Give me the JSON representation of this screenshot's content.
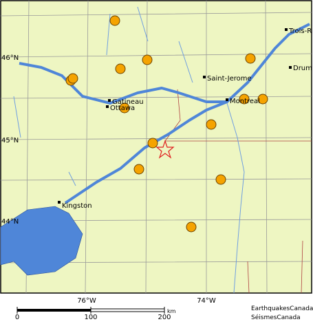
{
  "map": {
    "places": [
      "Trois-R",
      "Drum",
      "Saint-Jerome",
      "Gatineau",
      "Ottawa",
      "Montreal",
      "Kingston"
    ],
    "lat_labels": [
      "46°N",
      "45°N",
      "44°N"
    ],
    "lon_labels": [
      "76°W",
      "74°W"
    ],
    "scale": {
      "labels": [
        "0",
        "100",
        "200"
      ],
      "unit": "km"
    },
    "credit": [
      "EarthquakesCanada",
      "SéismesCanada"
    ]
  }
}
